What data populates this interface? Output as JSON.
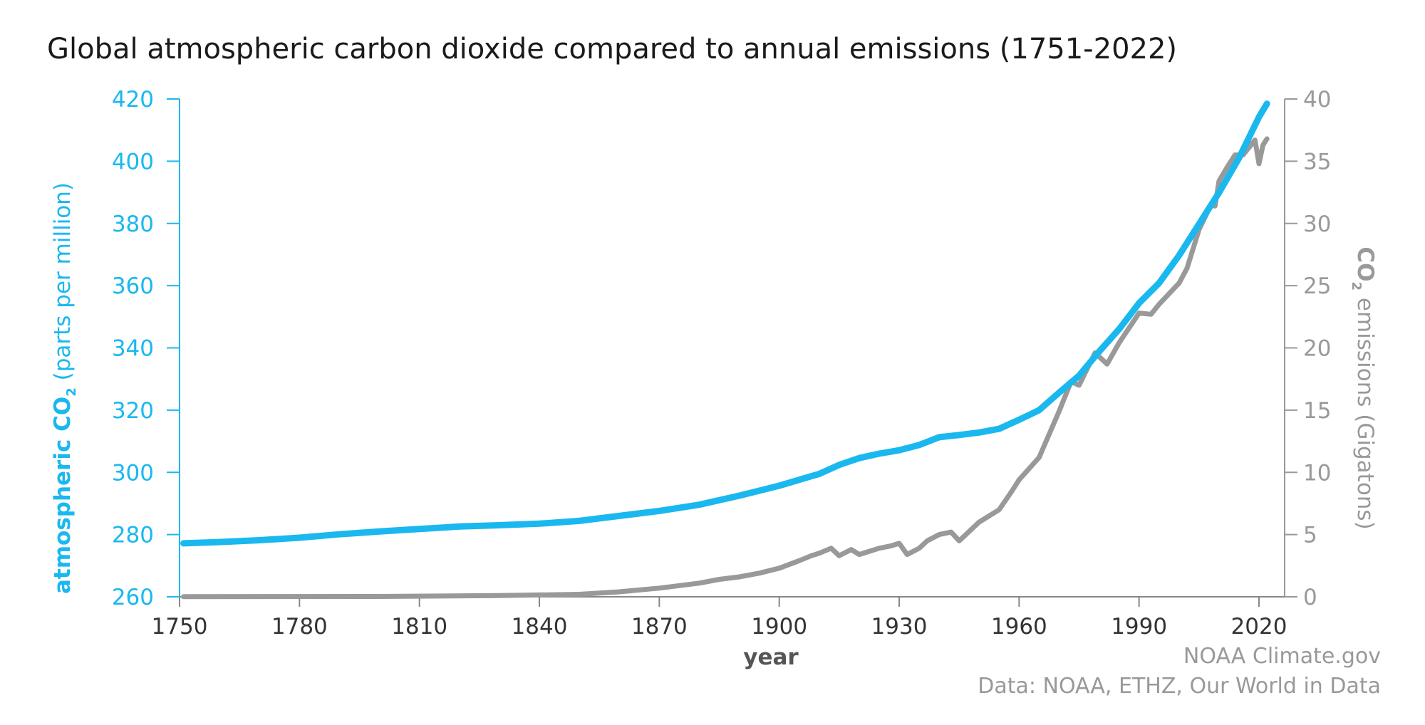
{
  "chart_data": {
    "type": "line",
    "title": "Global atmospheric carbon dioxide compared to annual emissions (1751-2022)",
    "xlabel": "year",
    "xlim": [
      1750,
      2022
    ],
    "xticks": [
      1750,
      1780,
      1810,
      1840,
      1870,
      1900,
      1930,
      1960,
      1990,
      2020
    ],
    "left_axis": {
      "label_prefix": "atmospheric CO",
      "label_sub": "2",
      "label_suffix": " (parts per million)",
      "ylim": [
        260,
        420
      ],
      "ticks": [
        260,
        280,
        300,
        320,
        340,
        360,
        380,
        400,
        420
      ],
      "color": "#1ab8ef"
    },
    "right_axis": {
      "label_prefix": "CO",
      "label_sub": "2",
      "label_suffix": " emissions (Gigatons)",
      "ylim": [
        0,
        40
      ],
      "ticks": [
        0,
        5,
        10,
        15,
        20,
        25,
        30,
        35,
        40
      ],
      "color": "#999999"
    },
    "grid": false,
    "legend": "none",
    "series": [
      {
        "axis": "left",
        "color": "#1ab8ef",
        "x": [
          1751,
          1760,
          1770,
          1780,
          1790,
          1800,
          1810,
          1820,
          1830,
          1840,
          1850,
          1860,
          1870,
          1880,
          1890,
          1900,
          1910,
          1915,
          1920,
          1925,
          1930,
          1935,
          1940,
          1945,
          1950,
          1955,
          1960,
          1965,
          1970,
          1975,
          1980,
          1985,
          1990,
          1995,
          2000,
          2005,
          2010,
          2015,
          2020,
          2022
        ],
        "y": [
          277.2,
          277.6,
          278.2,
          279.0,
          280.1,
          281.0,
          281.8,
          282.6,
          283.0,
          283.5,
          284.4,
          286.0,
          287.6,
          289.6,
          292.5,
          295.7,
          299.5,
          302.4,
          304.6,
          306.0,
          307.1,
          308.8,
          311.3,
          312.0,
          312.8,
          314.0,
          316.9,
          320.0,
          325.6,
          331.1,
          338.8,
          346.0,
          354.4,
          360.8,
          369.7,
          379.8,
          389.9,
          401.0,
          414.2,
          418.5
        ]
      },
      {
        "axis": "right",
        "color": "#999999",
        "x": [
          1751,
          1800,
          1830,
          1850,
          1860,
          1870,
          1880,
          1885,
          1890,
          1895,
          1900,
          1905,
          1908,
          1910,
          1913,
          1915,
          1918,
          1920,
          1922,
          1925,
          1928,
          1930,
          1932,
          1935,
          1937,
          1940,
          1943,
          1945,
          1947,
          1950,
          1955,
          1958,
          1960,
          1965,
          1970,
          1973,
          1975,
          1979,
          1982,
          1985,
          1990,
          1993,
          1995,
          2000,
          2002,
          2005,
          2008,
          2009,
          2010,
          2012,
          2014,
          2016,
          2019,
          2020,
          2021,
          2022
        ],
        "y": [
          0.01,
          0.03,
          0.1,
          0.2,
          0.4,
          0.7,
          1.1,
          1.4,
          1.6,
          1.9,
          2.3,
          2.9,
          3.3,
          3.5,
          3.9,
          3.3,
          3.8,
          3.4,
          3.6,
          3.9,
          4.1,
          4.3,
          3.4,
          3.9,
          4.5,
          5.0,
          5.2,
          4.5,
          5.1,
          6.0,
          7.0,
          8.4,
          9.4,
          11.2,
          14.9,
          17.3,
          17.0,
          19.6,
          18.7,
          20.4,
          22.8,
          22.7,
          23.5,
          25.2,
          26.4,
          29.5,
          31.5,
          31.4,
          33.4,
          34.5,
          35.5,
          35.5,
          36.7,
          34.8,
          36.3,
          36.8
        ]
      }
    ]
  },
  "footer": {
    "credit": "NOAA Climate.gov",
    "source": "Data: NOAA, ETHZ, Our World in Data"
  }
}
